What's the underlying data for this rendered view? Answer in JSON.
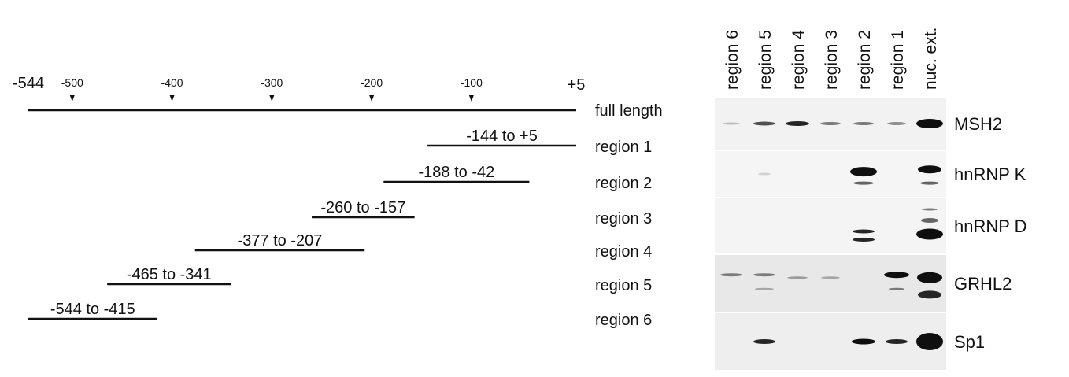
{
  "map": {
    "start": -544,
    "end": {
      "value": 5,
      "label": "+5"
    },
    "ticks": [
      -500,
      -400,
      -300,
      -200,
      -100
    ],
    "full_length_label": "full length",
    "regions": [
      {
        "name": "region 1",
        "start": -144,
        "end": 5,
        "label": "-144 to +5"
      },
      {
        "name": "region 2",
        "start": -188,
        "end": -42,
        "label": "-188 to -42"
      },
      {
        "name": "region 3",
        "start": -260,
        "end": -157,
        "label": "-260 to -157"
      },
      {
        "name": "region 4",
        "start": -377,
        "end": -207,
        "label": "-377 to -207"
      },
      {
        "name": "region 5",
        "start": -465,
        "end": -341,
        "label": "-465 to -341"
      },
      {
        "name": "region 6",
        "start": -544,
        "end": -415,
        "label": "-544 to -415"
      }
    ]
  },
  "blot": {
    "lanes": [
      "region 6",
      "region 5",
      "region 4",
      "region 3",
      "region 2",
      "region 1",
      "nuc. ext."
    ],
    "proteins": [
      "MSH2",
      "hnRNP K",
      "hnRNP D",
      "GRHL2",
      "Sp1"
    ]
  }
}
